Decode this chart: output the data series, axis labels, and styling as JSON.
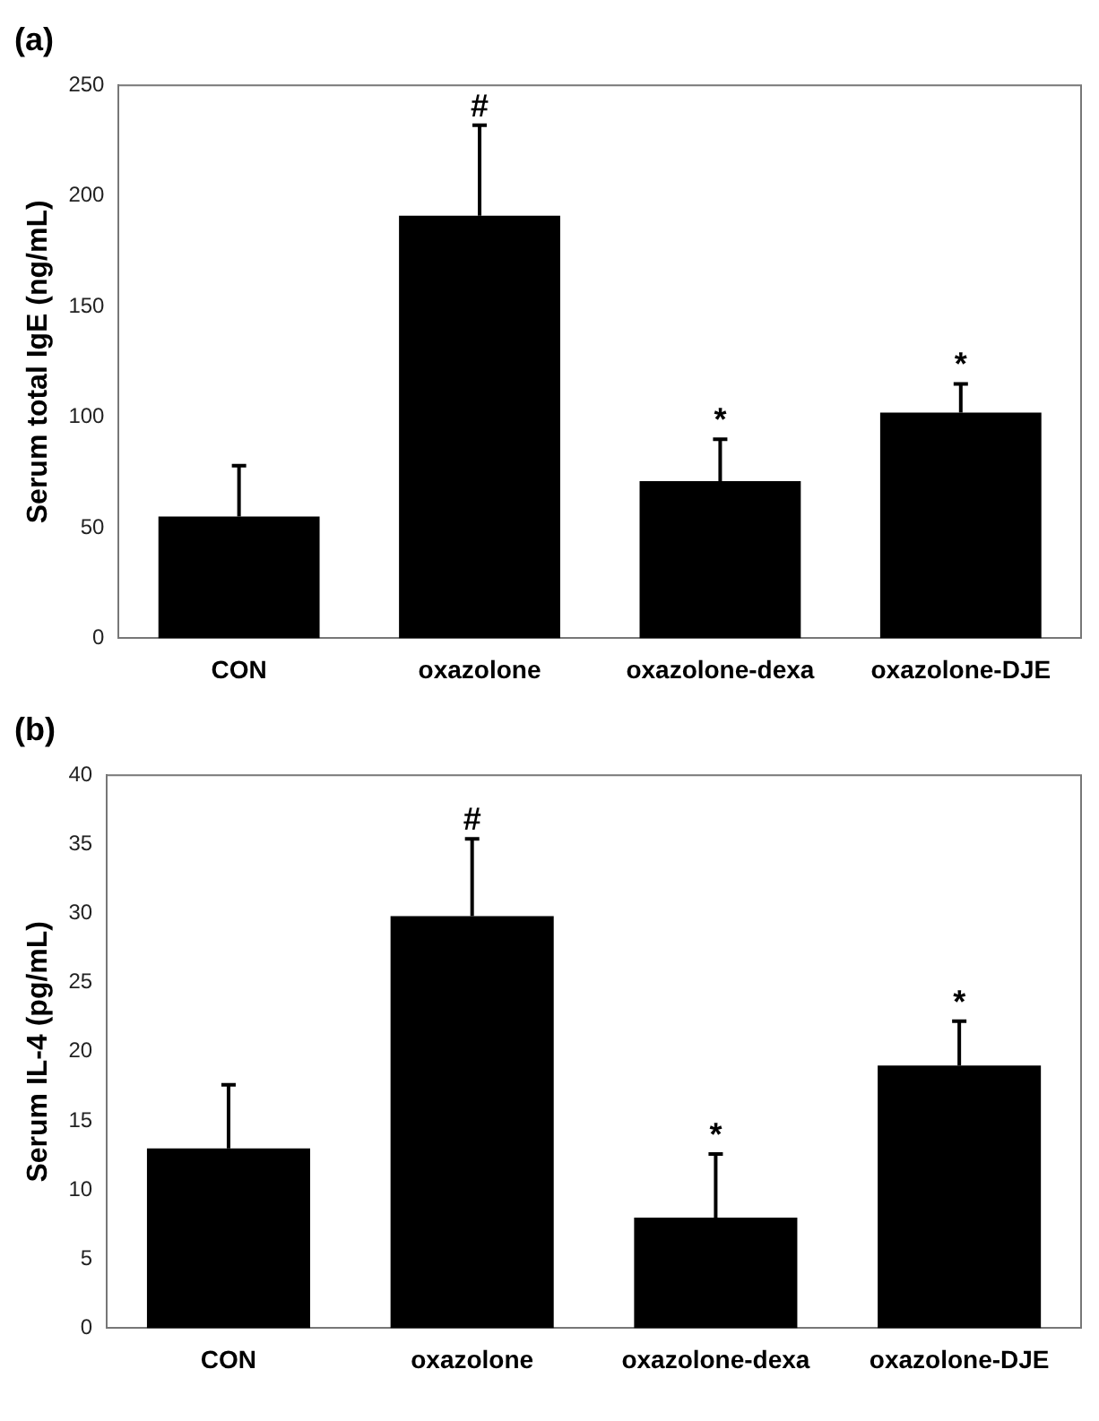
{
  "chart_data": [
    {
      "type": "bar",
      "title": "(a)",
      "ylabel": "Serum total IgE (ng/mL)",
      "categories": [
        "CON",
        "oxazolone",
        "oxazolone-dexa",
        "oxazolone-DJE"
      ],
      "color": "#000000",
      "values": [
        55,
        191,
        71,
        102
      ],
      "errors": [
        [
          55,
          78
        ],
        [
          191,
          232
        ],
        [
          71,
          90
        ],
        [
          102,
          115
        ]
      ],
      "ylim": [
        0,
        250
      ],
      "yticks": [
        0,
        50,
        100,
        150,
        200,
        250
      ],
      "grid": false,
      "legend": false,
      "annotations": [
        "#",
        "*",
        "*"
      ]
    },
    {
      "type": "bar",
      "title": "(b)",
      "ylabel": "Serum IL-4 (pg/mL)",
      "categories": [
        "CON",
        "oxazolone",
        "oxazolone-dexa",
        "oxazolone-DJE"
      ],
      "color": "#000000",
      "values": [
        13,
        29.8,
        8,
        19
      ],
      "errors": [
        [
          13,
          17.6
        ],
        [
          29.8,
          35.4
        ],
        [
          8,
          12.6
        ],
        [
          19,
          22.2
        ]
      ],
      "ylim": [
        0,
        40
      ],
      "yticks": [
        0,
        5,
        10,
        15,
        20,
        25,
        30,
        35,
        40
      ],
      "grid": false,
      "legend": false,
      "annotations": [
        "#",
        "*",
        "*"
      ]
    }
  ]
}
